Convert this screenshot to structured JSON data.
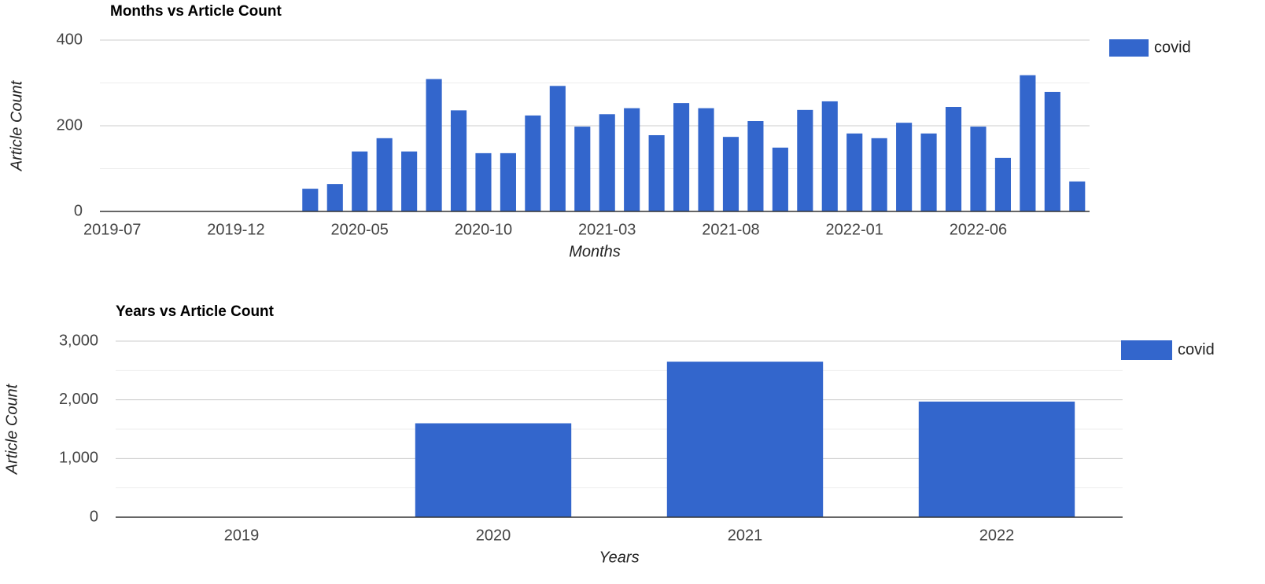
{
  "chart_data": [
    {
      "type": "bar",
      "title": "Months vs Article Count",
      "x_label": "Months",
      "y_label": "Article Count",
      "categories": [
        "2019-07",
        null,
        null,
        null,
        null,
        "2019-12",
        null,
        null,
        null,
        null,
        "2020-05",
        null,
        null,
        null,
        null,
        "2020-10",
        null,
        null,
        null,
        null,
        "2021-03",
        null,
        null,
        null,
        null,
        "2021-08",
        null,
        null,
        null,
        null,
        "2022-01",
        null,
        null,
        null,
        null,
        "2022-06",
        null,
        null,
        null,
        null
      ],
      "series": [
        {
          "name": "covid",
          "color": "#3366cc",
          "values": [
            0,
            0,
            0,
            0,
            0,
            0,
            0,
            0,
            53,
            64,
            140,
            171,
            140,
            309,
            236,
            136,
            136,
            224,
            293,
            198,
            227,
            241,
            178,
            253,
            241,
            174,
            211,
            149,
            237,
            257,
            182,
            171,
            207,
            182,
            244,
            198,
            125,
            318,
            279,
            70
          ]
        }
      ],
      "ylim": [
        0,
        400
      ],
      "yticks": [
        0,
        200,
        400
      ],
      "minor_yticks": [
        100,
        300
      ],
      "grid": true,
      "legend": "right"
    },
    {
      "type": "bar",
      "title": "Years vs Article Count",
      "x_label": "Years",
      "y_label": "Article Count",
      "categories": [
        "2019",
        "2020",
        "2021",
        "2022"
      ],
      "series": [
        {
          "name": "covid",
          "color": "#3366cc",
          "values": [
            0,
            1600,
            2650,
            1970
          ]
        }
      ],
      "ylim": [
        0,
        3000
      ],
      "yticks": [
        0,
        {
          "value": 1000,
          "label": "1,000"
        },
        {
          "value": 2000,
          "label": "2,000"
        },
        {
          "value": 3000,
          "label": "3,000"
        }
      ],
      "minor_yticks": [
        500,
        1500,
        2500
      ],
      "grid": true,
      "legend": "right"
    }
  ]
}
